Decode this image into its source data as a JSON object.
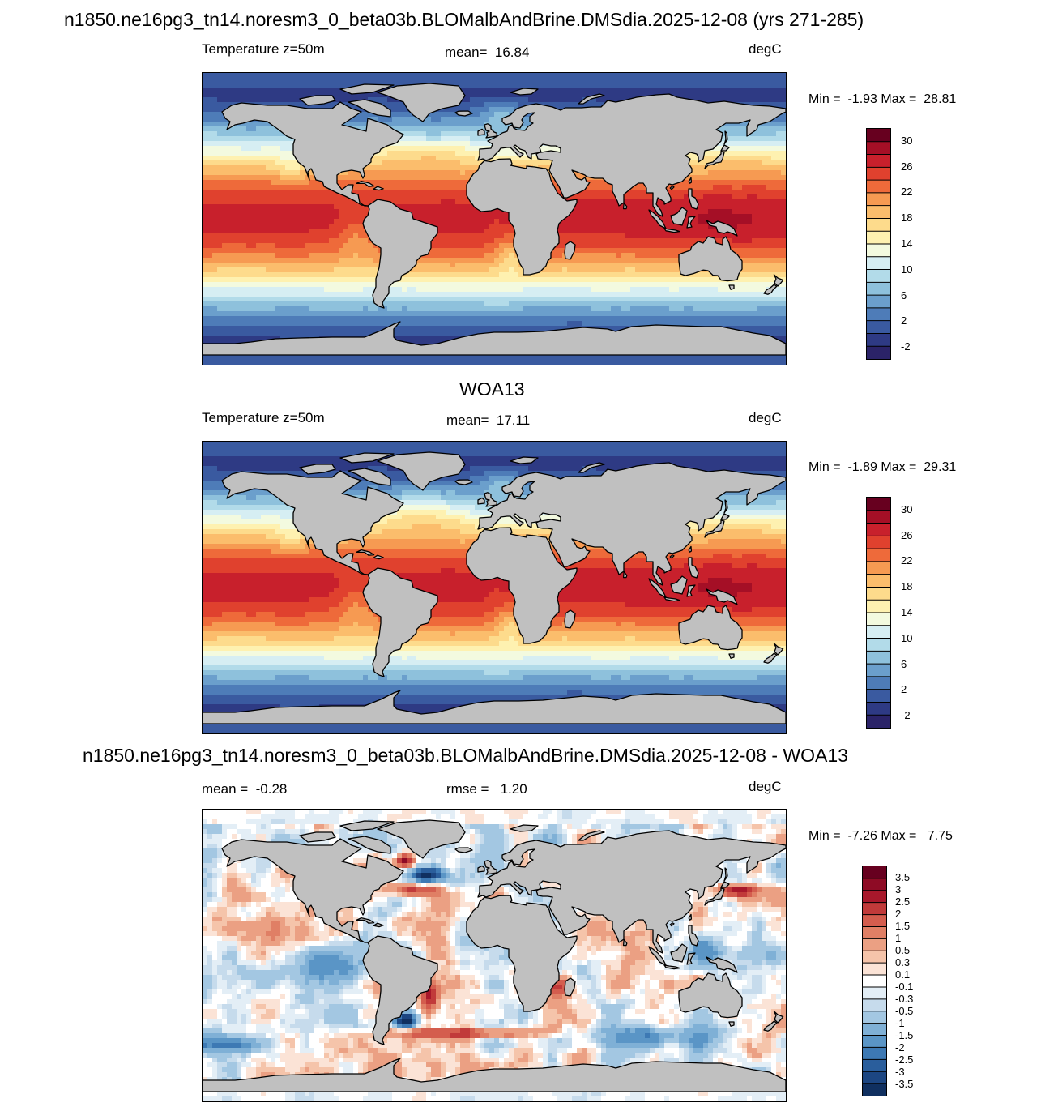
{
  "main_title": "n1850.ne16pg3_tn14.noresm3_0_beta03b.BLOMalbAndBrine.DMSdia.2025-12-08 (yrs 271-285)",
  "panels": [
    {
      "id": "model",
      "title": "",
      "left_label": "Temperature z=50m",
      "center_label": "mean=  16.84",
      "right_label": "degC",
      "minmax": "Min =  -1.93 Max =  28.81",
      "colorbar_ticks": [
        "30",
        "26",
        "22",
        "18",
        "14",
        "10",
        "6",
        "2",
        "-2"
      ],
      "colorbar_colors": [
        "#67001f",
        "#a50f26",
        "#c8202c",
        "#e0412e",
        "#ee6a3a",
        "#f69a52",
        "#fbbd6c",
        "#fddb8c",
        "#fef1b0",
        "#f3fadf",
        "#d6eef3",
        "#b2dbe9",
        "#8ec1dc",
        "#6b9fcc",
        "#4e7cb8",
        "#3a5aa0",
        "#2e3a84",
        "#2b2368"
      ]
    },
    {
      "id": "obs",
      "title": "WOA13",
      "left_label": "Temperature z=50m",
      "center_label": "mean=  17.11",
      "right_label": "degC",
      "minmax": "Min =  -1.89 Max =  29.31",
      "colorbar_ticks": [
        "30",
        "26",
        "22",
        "18",
        "14",
        "10",
        "6",
        "2",
        "-2"
      ],
      "colorbar_colors": [
        "#67001f",
        "#a50f26",
        "#c8202c",
        "#e0412e",
        "#ee6a3a",
        "#f69a52",
        "#fbbd6c",
        "#fddb8c",
        "#fef1b0",
        "#f3fadf",
        "#d6eef3",
        "#b2dbe9",
        "#8ec1dc",
        "#6b9fcc",
        "#4e7cb8",
        "#3a5aa0",
        "#2e3a84",
        "#2b2368"
      ]
    },
    {
      "id": "diff",
      "title": "n1850.ne16pg3_tn14.noresm3_0_beta03b.BLOMalbAndBrine.DMSdia.2025-12-08 - WOA13",
      "left_label": "mean =  -0.28",
      "center_label": "rmse =   1.20",
      "right_label": "degC",
      "minmax": "Min =  -7.26 Max =   7.75",
      "colorbar_ticks": [
        "3.5",
        "3",
        "2.5",
        "2",
        "1.5",
        "1",
        "0.5",
        "0.3",
        "0.1",
        "-0.1",
        "-0.3",
        "-0.5",
        "-1",
        "-1.5",
        "-2",
        "-2.5",
        "-3",
        "-3.5"
      ],
      "colorbar_colors": [
        "#67001f",
        "#8e0b25",
        "#a8182b",
        "#c13a3a",
        "#d45d4e",
        "#e07f65",
        "#eba083",
        "#f5c4aa",
        "#fbe3d6",
        "#ffffff",
        "#e3eef6",
        "#c6dbec",
        "#a3c7e2",
        "#7fb0d6",
        "#5a95c6",
        "#3d79b4",
        "#2a5e9c",
        "#1c4682",
        "#103060"
      ]
    }
  ],
  "colors": {
    "land": "#c0c0c0",
    "coast": "#000000",
    "frame": "#000000"
  }
}
